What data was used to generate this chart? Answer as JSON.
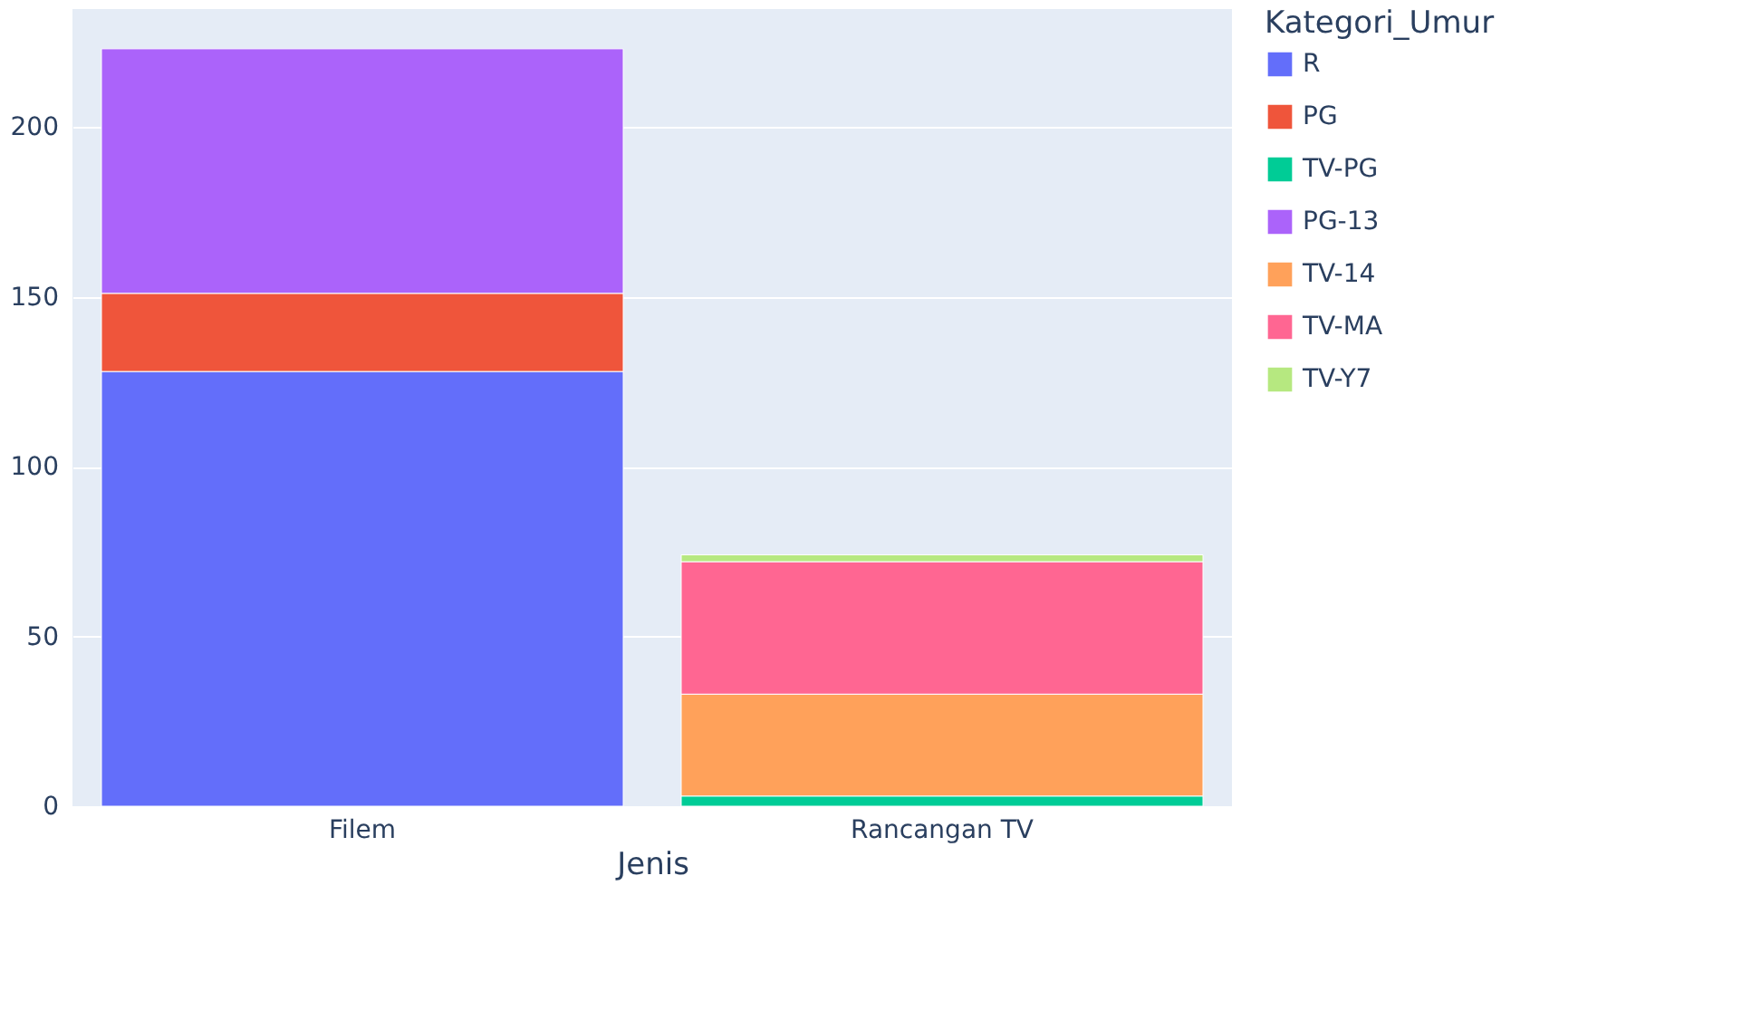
{
  "chart_data": {
    "type": "bar",
    "stacked": true,
    "xlabel": "Jenis",
    "legend_title": "Kategori_Umur",
    "categories": [
      "Filem",
      "Rancangan TV"
    ],
    "series": [
      {
        "name": "R",
        "color": "#636efa",
        "values": [
          128,
          null
        ]
      },
      {
        "name": "PG",
        "color": "#ef553b",
        "values": [
          23,
          null
        ]
      },
      {
        "name": "TV-PG",
        "color": "#00cc96",
        "values": [
          null,
          3
        ]
      },
      {
        "name": "PG-13",
        "color": "#ab63fa",
        "values": [
          72,
          null
        ]
      },
      {
        "name": "TV-14",
        "color": "#ffa15a",
        "values": [
          null,
          30
        ]
      },
      {
        "name": "TV-MA",
        "color": "#ff6692",
        "values": [
          null,
          39
        ]
      },
      {
        "name": "TV-Y7",
        "color": "#b6e880",
        "values": [
          null,
          2
        ]
      }
    ],
    "ylim": [
      0,
      234.7
    ],
    "yticks": [
      0,
      50,
      100,
      150,
      200
    ],
    "grid": "y",
    "legend": "top right"
  }
}
